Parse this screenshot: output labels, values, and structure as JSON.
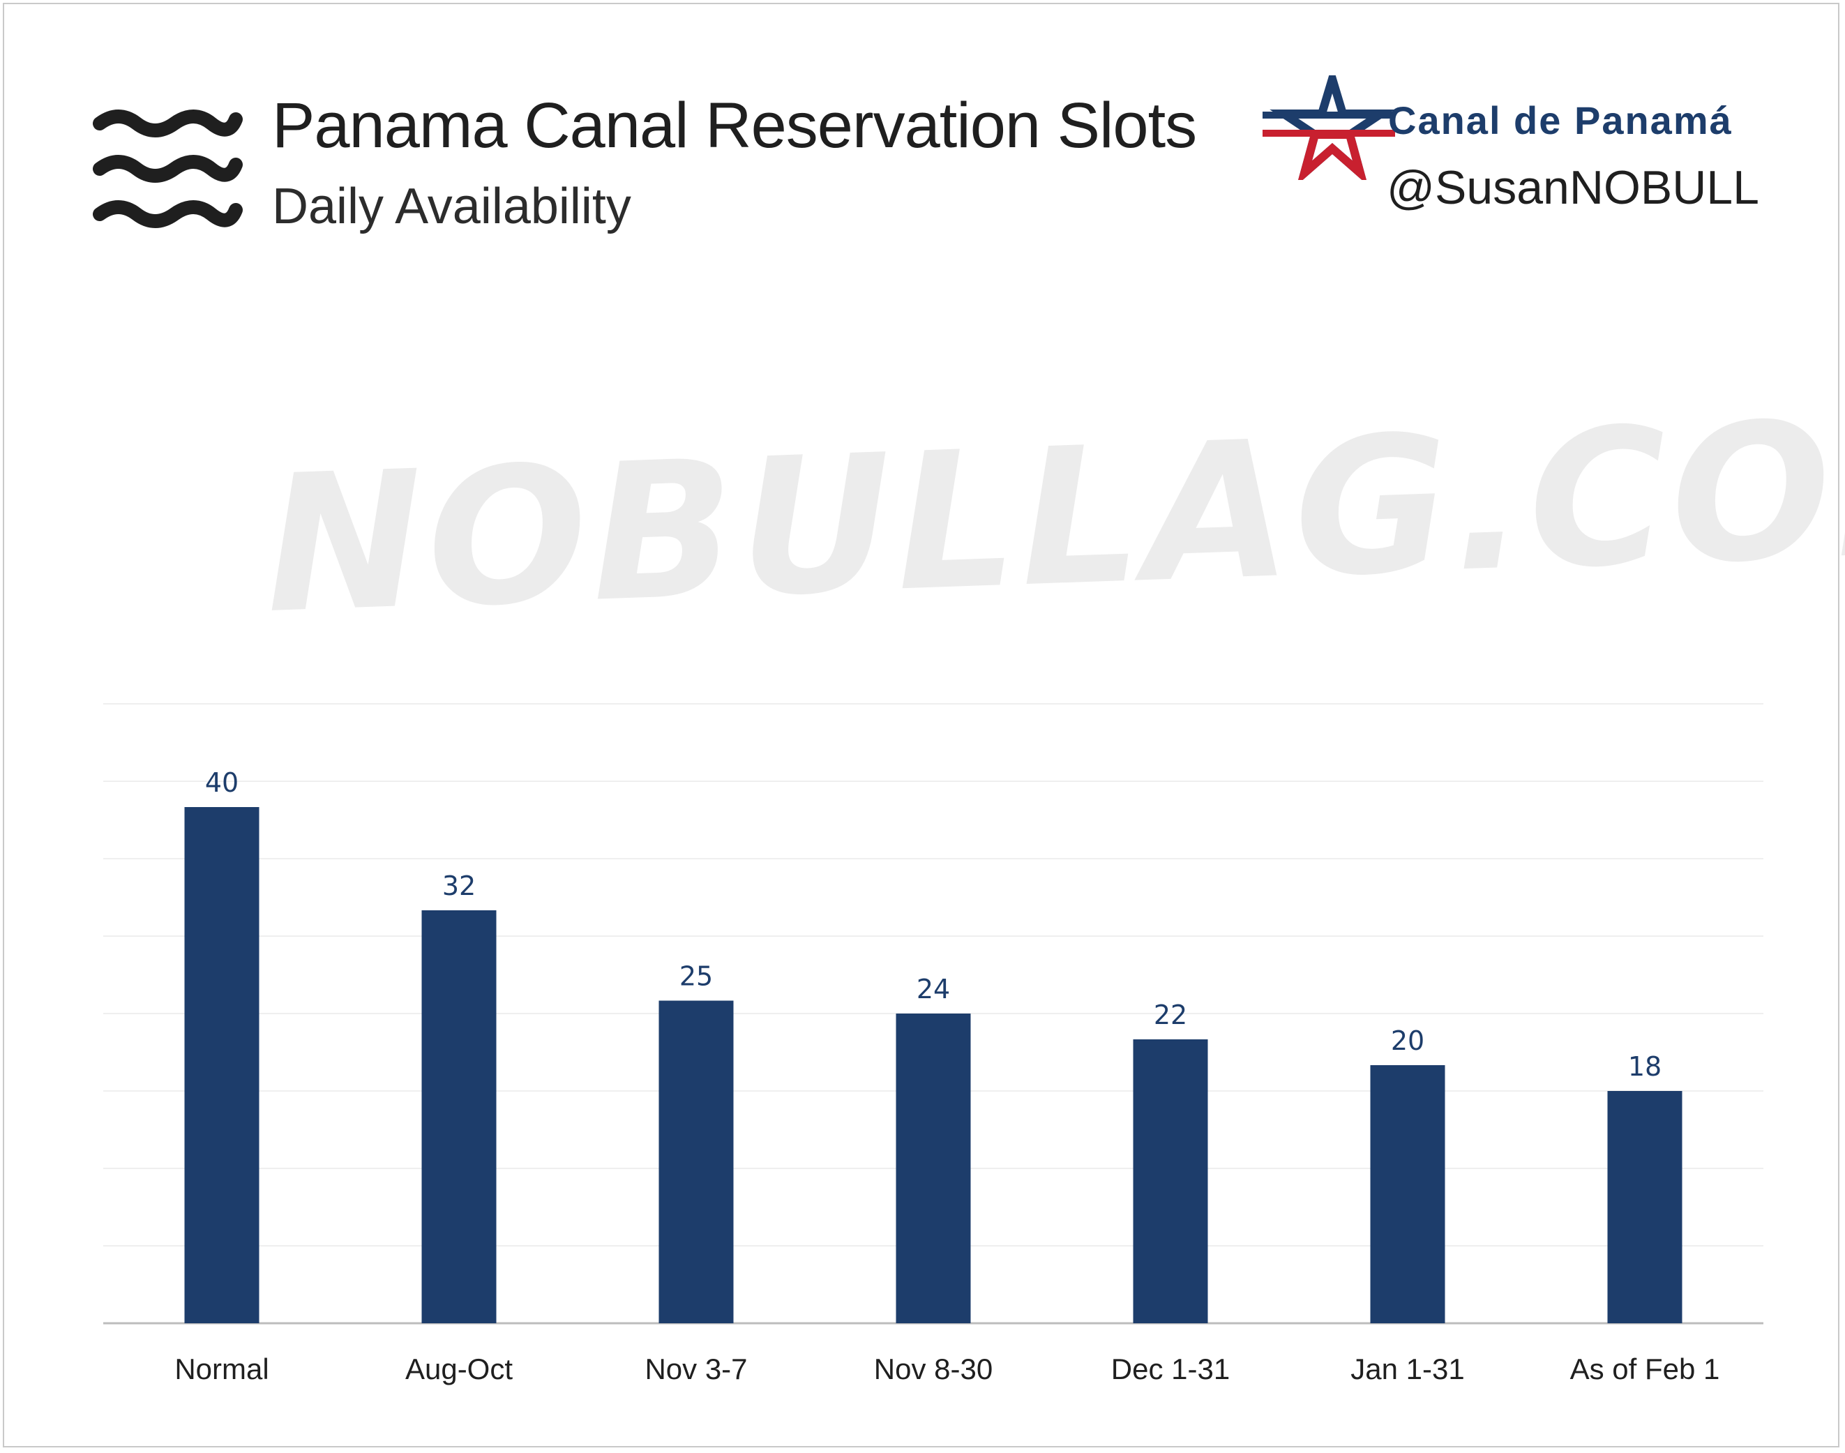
{
  "header": {
    "title": "Panama Canal Reservation Slots",
    "subtitle": "Daily Availability",
    "logo_text": "Canal de Panamá",
    "handle": "@SusanNOBULL"
  },
  "watermark": "NOBULLAG.COM",
  "colors": {
    "bar": "#1d3d6b",
    "logo_blue": "#1d3d6b",
    "logo_red": "#c8202f"
  },
  "icons": [
    "waves-icon",
    "star-logo-icon"
  ],
  "chart_data": {
    "type": "bar",
    "title": "Panama Canal Reservation Slots",
    "subtitle": "Daily Availability",
    "categories": [
      "Normal",
      "Aug-Oct",
      "Nov 3-7",
      "Nov 8-30",
      "Dec 1-31",
      "Jan 1-31",
      "As of Feb 1"
    ],
    "values": [
      40,
      32,
      25,
      24,
      22,
      20,
      18
    ],
    "ylim": [
      0,
      48
    ],
    "grid": true,
    "data_labels": true
  }
}
